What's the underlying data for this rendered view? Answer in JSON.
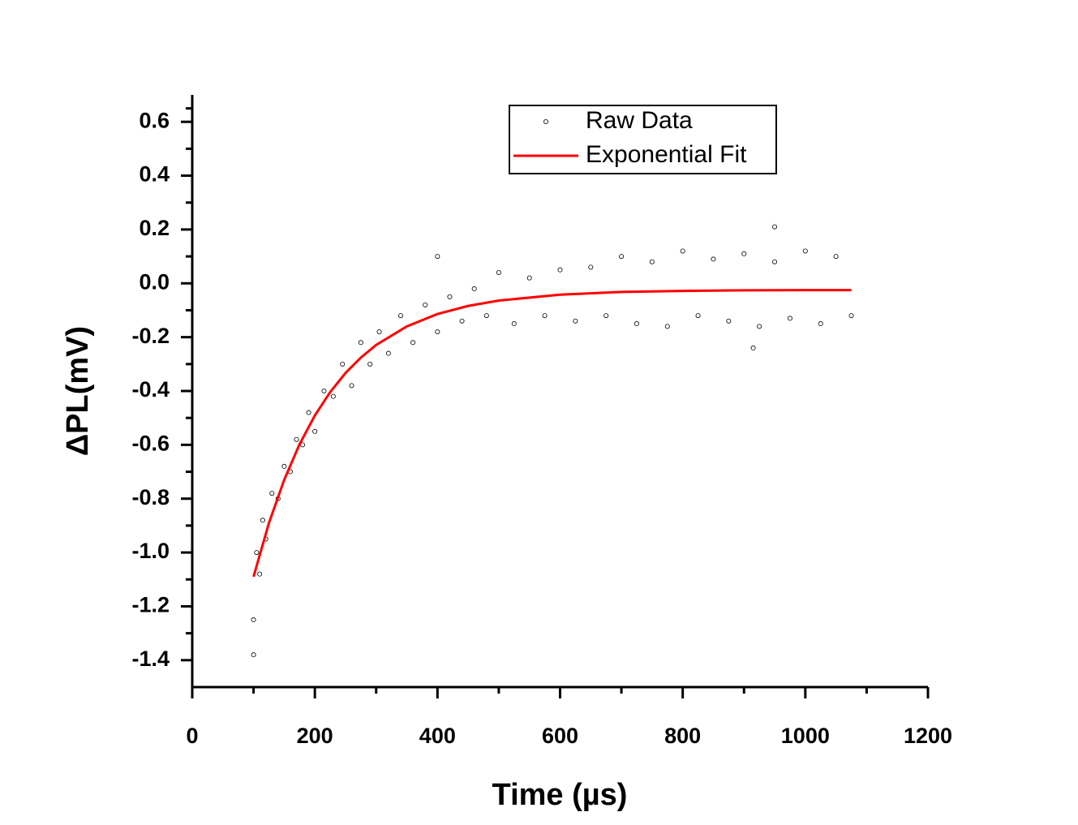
{
  "chart_data": {
    "type": "scatter",
    "xlabel": "Time (µs)",
    "ylabel": "ΔPL(mV)",
    "xlim": [
      0,
      1200
    ],
    "ylim": [
      -1.5,
      0.7
    ],
    "xticks": [
      0,
      200,
      400,
      600,
      800,
      1000,
      1200
    ],
    "yticks": [
      0.6,
      0.4,
      0.2,
      {
        "value": 0,
        "label": "0.0"
      },
      -0.2,
      -0.4,
      -0.6,
      -0.8,
      {
        "value": -1,
        "label": "-1.0"
      },
      -1.2,
      -1.4
    ],
    "legend": "upper center",
    "series": [
      {
        "name": "Raw Data",
        "type": "scatter",
        "color": "#000000",
        "x": [
          100,
          105,
          110,
          115,
          120,
          130,
          140,
          150,
          160,
          170,
          180,
          190,
          200,
          215,
          230,
          245,
          260,
          275,
          290,
          305,
          320,
          340,
          360,
          380,
          400,
          420,
          440,
          460,
          480,
          500,
          525,
          550,
          575,
          600,
          625,
          650,
          675,
          700,
          725,
          750,
          775,
          800,
          825,
          850,
          875,
          900,
          925,
          950,
          975,
          1000,
          1025,
          1050,
          1075,
          100,
          400,
          950,
          915
        ],
        "values": [
          -1.25,
          -1.0,
          -1.08,
          -0.88,
          -0.95,
          -0.78,
          -0.8,
          -0.68,
          -0.7,
          -0.58,
          -0.6,
          -0.48,
          -0.55,
          -0.4,
          -0.42,
          -0.3,
          -0.38,
          -0.22,
          -0.3,
          -0.18,
          -0.26,
          -0.12,
          -0.22,
          -0.08,
          -0.18,
          -0.05,
          -0.14,
          -0.02,
          -0.12,
          0.04,
          -0.15,
          0.02,
          -0.12,
          0.05,
          -0.14,
          0.06,
          -0.12,
          0.1,
          -0.15,
          0.08,
          -0.16,
          0.12,
          -0.12,
          0.09,
          -0.14,
          0.11,
          -0.16,
          0.08,
          -0.13,
          0.12,
          -0.15,
          0.1,
          -0.12,
          -1.38,
          0.1,
          0.21,
          -0.24
        ]
      },
      {
        "name": "Exponential Fit",
        "type": "line",
        "color": "#ff0000",
        "x": [
          100,
          125,
          150,
          175,
          200,
          225,
          250,
          275,
          300,
          350,
          400,
          450,
          500,
          600,
          700,
          800,
          900,
          1000,
          1075
        ],
        "values": [
          -1.09,
          -0.891,
          -0.73,
          -0.598,
          -0.491,
          -0.404,
          -0.333,
          -0.276,
          -0.229,
          -0.16,
          -0.114,
          -0.084,
          -0.064,
          -0.042,
          -0.032,
          -0.028,
          -0.026,
          -0.025,
          -0.025
        ]
      }
    ]
  }
}
